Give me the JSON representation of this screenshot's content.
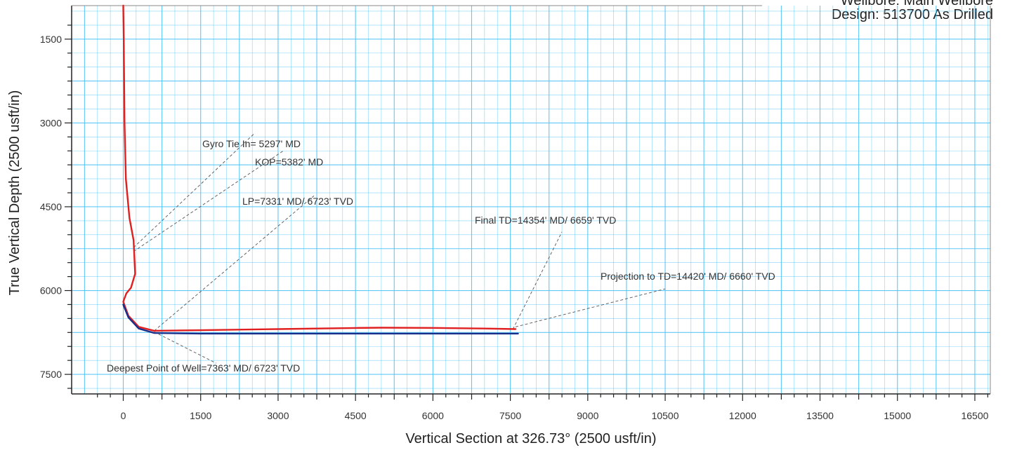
{
  "header": {
    "wellbore": "Wellbore:  Main Wellbore",
    "design": "Design:  513700 As Drilled"
  },
  "chart_data": {
    "type": "line",
    "title": "",
    "xlabel": "Vertical Section at 326.73° (2500 usft/in)",
    "ylabel": "True Vertical Depth (2500 usft/in)",
    "xlim": [
      -1000,
      16800
    ],
    "ylim": [
      7850,
      900
    ],
    "y_inverted": true,
    "xticks": [
      0,
      1500,
      3000,
      4500,
      6000,
      7500,
      9000,
      10500,
      12000,
      13500,
      15000,
      16500
    ],
    "yticks": [
      1500,
      3000,
      4500,
      6000,
      7500
    ],
    "grid": true,
    "grid_color": "#4fc3f7",
    "series": [
      {
        "name": "",
        "color": "#e02020",
        "x": [
          0,
          10,
          25,
          50,
          120,
          200,
          230,
          150,
          60,
          0,
          100,
          300,
          600,
          1500,
          3000,
          4500,
          5000,
          6000,
          7000,
          7600
        ],
        "y": [
          900,
          1500,
          3000,
          4000,
          4700,
          5100,
          5700,
          5950,
          6050,
          6200,
          6450,
          6650,
          6720,
          6710,
          6690,
          6670,
          6665,
          6668,
          6680,
          6690
        ]
      },
      {
        "name": "",
        "color": "#1a2f8a",
        "x": [
          0,
          100,
          300,
          600,
          1500,
          3000,
          4500,
          6000,
          7650
        ],
        "y": [
          6250,
          6480,
          6680,
          6760,
          6770,
          6770,
          6770,
          6770,
          6770
        ]
      }
    ],
    "annotations": [
      {
        "text": "Gyro Tie In= 5297' MD",
        "point": [
          200,
          5230
        ],
        "label_at": [
          2550,
          3180
        ]
      },
      {
        "text": "KOP=5382' MD",
        "point": [
          200,
          5300
        ],
        "label_at": [
          3100,
          3500
        ]
      },
      {
        "text": "LP=7331' MD/ 6723' TVD",
        "point": [
          600,
          6720
        ],
        "label_at": [
          3700,
          4300
        ]
      },
      {
        "text": "Final TD=14354' MD/ 6659' TVD",
        "point": [
          7550,
          6690
        ],
        "label_at": [
          8500,
          4950
        ]
      },
      {
        "text": "Projection to TD=14420' MD/ 6660' TVD",
        "point": [
          7600,
          6650
        ],
        "label_at": [
          10500,
          5970
        ]
      },
      {
        "text": "Deepest Point of Well=7363' MD/ 6723' TVD",
        "point": [
          600,
          6740
        ],
        "label_at": [
          1800,
          7300
        ]
      }
    ]
  }
}
